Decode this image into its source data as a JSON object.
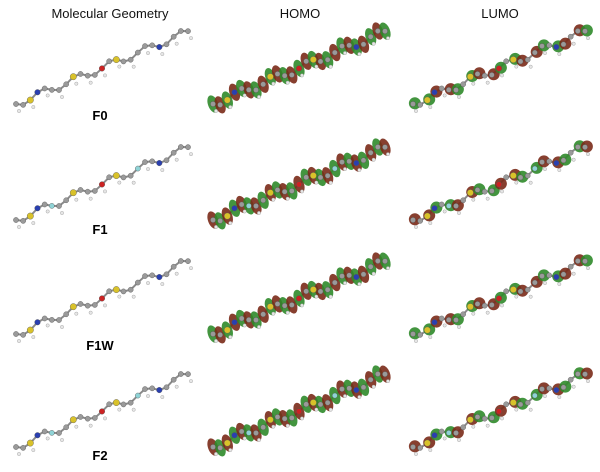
{
  "headers": [
    "Molecular Geometry",
    "HOMO",
    "LUMO"
  ],
  "rows": [
    {
      "label": "F0"
    },
    {
      "label": "F1"
    },
    {
      "label": "F1W"
    },
    {
      "label": "F2"
    }
  ],
  "colors": {
    "carbon": "#9a9a9a",
    "hydrogen": "#e6e6e6",
    "sulfur": "#d9c22a",
    "nitrogen": "#2a3fb0",
    "oxygen": "#cc2222",
    "fluorine": "#8fd3d6",
    "orbital_green": "#2f8a2a",
    "orbital_red": "#7a2a18"
  }
}
